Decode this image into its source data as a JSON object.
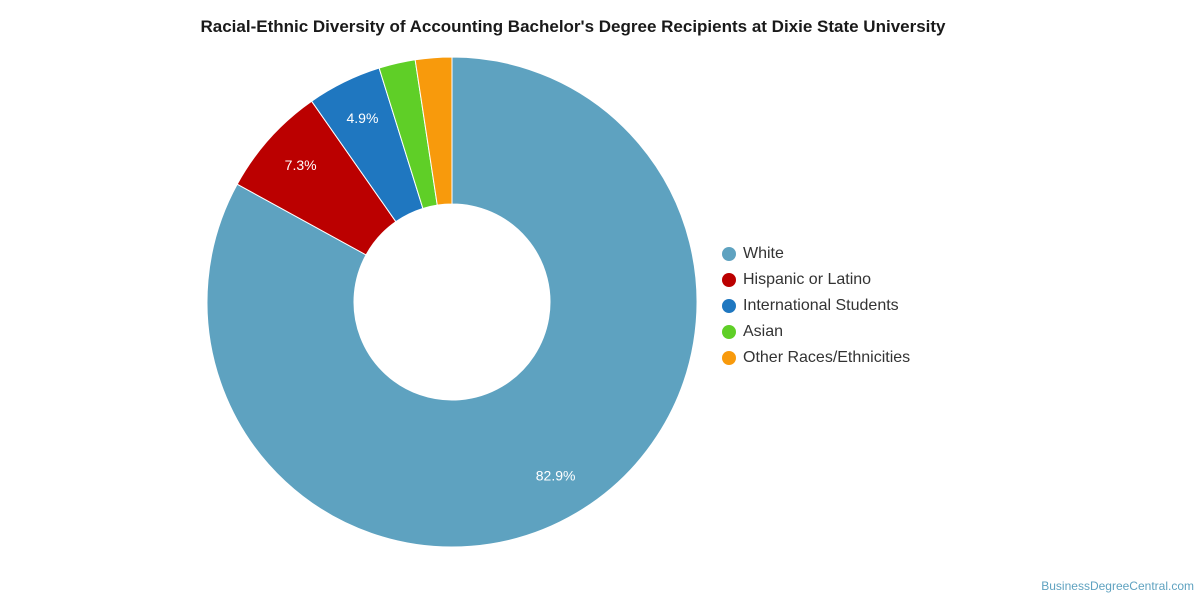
{
  "chart_data": {
    "type": "pie",
    "title": "Racial-Ethnic Diversity of Accounting Bachelor's Degree Recipients at Dixie State University",
    "categories": [
      "White",
      "Hispanic or Latino",
      "International Students",
      "Asian",
      "Other Races/Ethnicities"
    ],
    "values": [
      82.9,
      7.3,
      4.9,
      2.4,
      2.4
    ],
    "data_labels": [
      "82.9%",
      "7.3%",
      "4.9%",
      "",
      ""
    ],
    "colors": [
      "#5ea2c0",
      "#bb0000",
      "#1f77c0",
      "#5fcf27",
      "#f89a0c"
    ],
    "legend_position": "right",
    "donut": true
  },
  "credit": "BusinessDegreeCentral.com"
}
